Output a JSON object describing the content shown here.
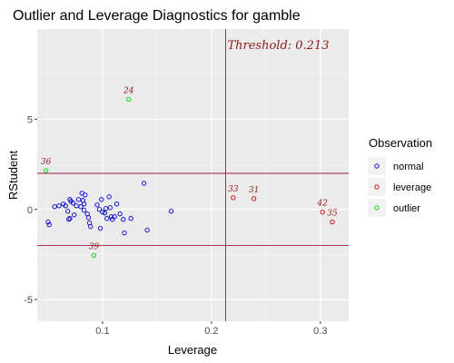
{
  "chart_data": {
    "type": "scatter",
    "title": "Outlier and Leverage Diagnostics for gamble",
    "xlabel": "Leverage",
    "ylabel": "RStudent",
    "xlim": [
      0.04,
      0.326
    ],
    "ylim": [
      -6.2,
      10.0
    ],
    "x_ticks": [
      0.1,
      0.2,
      0.3
    ],
    "y_ticks": [
      -5,
      0,
      5
    ],
    "x_tick_labels": [
      "0.1",
      "0.2",
      "0.3"
    ],
    "y_tick_labels": [
      "-5",
      "0",
      "5"
    ],
    "grid": true,
    "hlines": [
      2,
      -2
    ],
    "vline": 0.213,
    "threshold_label": "Threshold: 0.213",
    "legend": {
      "title": "Observation",
      "position": "right",
      "entries": [
        {
          "label": "normal",
          "color": "#0000cd"
        },
        {
          "label": "leverage",
          "color": "#cd0000"
        },
        {
          "label": "outlier",
          "color": "#00cd00"
        }
      ]
    },
    "series": [
      {
        "name": "normal",
        "color": "#0000cd",
        "points": [
          [
            0.05,
            -0.7
          ],
          [
            0.051,
            -0.85
          ],
          [
            0.056,
            0.15
          ],
          [
            0.06,
            0.2
          ],
          [
            0.064,
            0.3
          ],
          [
            0.066,
            0.2
          ],
          [
            0.068,
            -0.1
          ],
          [
            0.069,
            -0.55
          ],
          [
            0.07,
            0.55
          ],
          [
            0.071,
            0.45
          ],
          [
            0.073,
            0.35
          ],
          [
            0.074,
            -0.3
          ],
          [
            0.076,
            0.2
          ],
          [
            0.078,
            0.55
          ],
          [
            0.08,
            0.15
          ],
          [
            0.081,
            0.9
          ],
          [
            0.082,
            0.5
          ],
          [
            0.083,
            0.3
          ],
          [
            0.084,
            0.8
          ],
          [
            0.086,
            -0.25
          ],
          [
            0.087,
            -0.45
          ],
          [
            0.088,
            -0.75
          ],
          [
            0.089,
            -0.95
          ],
          [
            0.095,
            0.25
          ],
          [
            0.097,
            0.0
          ],
          [
            0.099,
            0.55
          ],
          [
            0.1,
            -0.15
          ],
          [
            0.102,
            -0.2
          ],
          [
            0.103,
            0.05
          ],
          [
            0.104,
            -0.5
          ],
          [
            0.106,
            0.7
          ],
          [
            0.107,
            0.1
          ],
          [
            0.108,
            -0.4
          ],
          [
            0.109,
            -0.55
          ],
          [
            0.111,
            -0.4
          ],
          [
            0.113,
            0.3
          ],
          [
            0.116,
            -0.25
          ],
          [
            0.119,
            -0.55
          ],
          [
            0.12,
            -1.3
          ],
          [
            0.126,
            -0.5
          ],
          [
            0.138,
            1.45
          ],
          [
            0.141,
            -1.15
          ],
          [
            0.163,
            -0.1
          ],
          [
            0.07,
            -0.5
          ],
          [
            0.098,
            -1.05
          ],
          [
            0.083,
            -0.05
          ]
        ]
      },
      {
        "name": "leverage",
        "color": "#cd0000",
        "points": [
          [
            0.22,
            0.65
          ],
          [
            0.239,
            0.6
          ],
          [
            0.302,
            -0.15
          ],
          [
            0.311,
            -0.7
          ]
        ]
      },
      {
        "name": "outlier",
        "color": "#00cd00",
        "points": [
          [
            0.048,
            2.15
          ],
          [
            0.124,
            6.1
          ],
          [
            0.092,
            -2.55
          ]
        ]
      }
    ],
    "annotations": [
      {
        "text": "24",
        "x": 0.124,
        "y": 6.1
      },
      {
        "text": "36",
        "x": 0.048,
        "y": 2.15
      },
      {
        "text": "39",
        "x": 0.092,
        "y": -2.55
      },
      {
        "text": "33",
        "x": 0.22,
        "y": 0.65
      },
      {
        "text": "31",
        "x": 0.239,
        "y": 0.6
      },
      {
        "text": "42",
        "x": 0.302,
        "y": -0.15
      },
      {
        "text": "35",
        "x": 0.311,
        "y": -0.7
      }
    ]
  }
}
